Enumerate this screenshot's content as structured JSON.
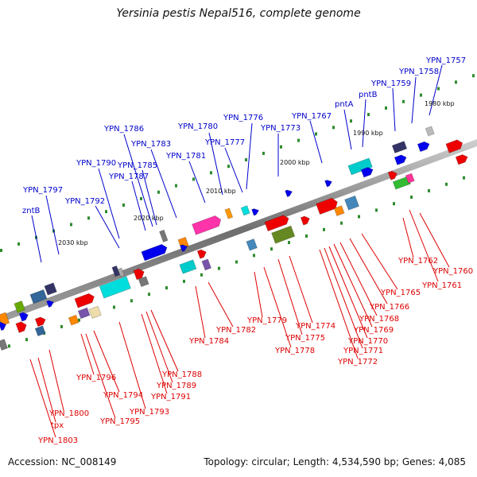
{
  "title": "Yersinia pestis Nepal516, complete genome",
  "footer": {
    "accession": "Accession: NC_008149",
    "stats": "Topology: circular; Length: 4,534,590 bp; Genes: 4,085"
  },
  "colors": {
    "forward_label": "#0000cc",
    "reverse_label": "#dd0000",
    "backbone": "#8a8a8a",
    "tick": "#2e8b2e"
  },
  "ticks": [
    "1980 kbp",
    "1990 kbp",
    "2000 kbp",
    "2010 kbp",
    "2020 kbp",
    "2030 kbp"
  ],
  "forward_labels": [
    "YPN_1757",
    "YPN_1758",
    "YPN_1759",
    "pntB",
    "pntA",
    "YPN_1767",
    "YPN_1773",
    "YPN_1776",
    "YPN_1777",
    "YPN_1780",
    "YPN_1781",
    "YPN_1783",
    "YPN_1786",
    "YPN_1785",
    "YPN_1787",
    "YPN_1790",
    "YPN_1792",
    "YPN_1797",
    "zntB"
  ],
  "reverse_labels": [
    "YPN_1762",
    "YPN_1760",
    "YPN_1761",
    "YPN_1765",
    "YPN_1766",
    "YPN_1768",
    "YPN_1769",
    "YPN_1770",
    "YPN_1771",
    "YPN_1772",
    "YPN_1774",
    "YPN_1775",
    "YPN_1778",
    "YPN_1779",
    "YPN_1782",
    "YPN_1784",
    "YPN_1788",
    "YPN_1789",
    "YPN_1791",
    "YPN_1793",
    "YPN_1794",
    "YPN_1795",
    "YPN_1796",
    "YPN_1800",
    "tpx",
    "YPN_1803"
  ]
}
